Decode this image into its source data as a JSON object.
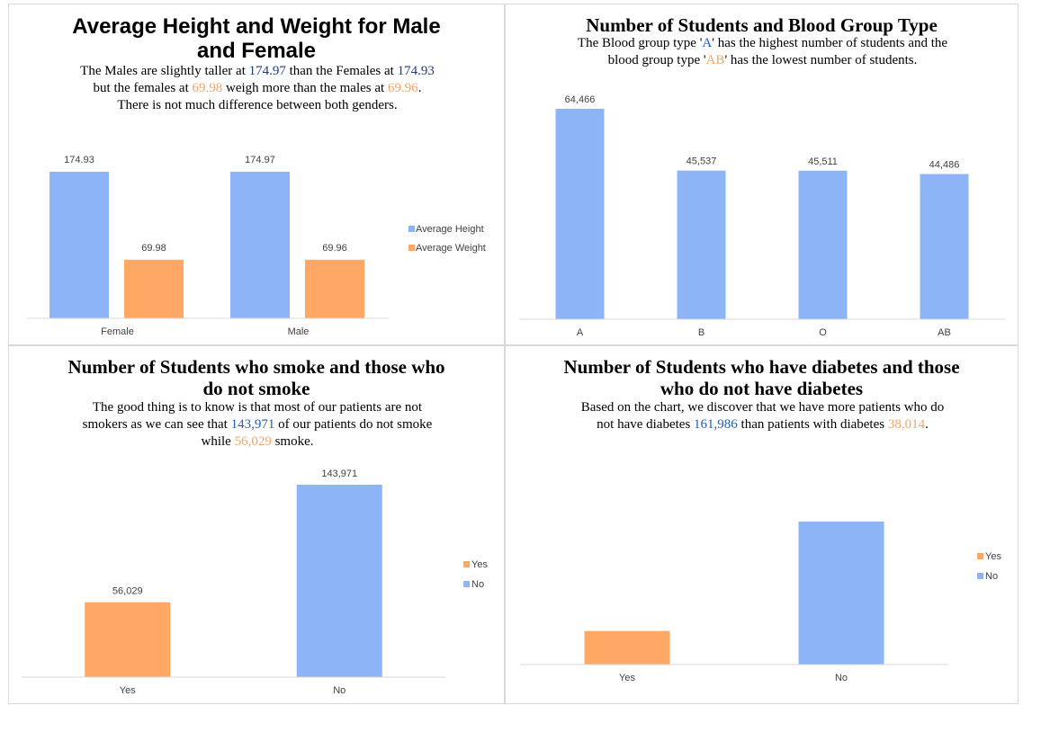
{
  "colors": {
    "height_blue": "#8eb4f8",
    "weight_orange": "#ffa764",
    "axis": "#d9d9d9",
    "label": "#404040"
  },
  "panels": {
    "p1": {
      "title_l1": "Average Height and Weight for Male",
      "title_l2": "and Female",
      "sub": {
        "a": "The Males are slightly taller at ",
        "b": "174.97",
        "c": " than the Females at ",
        "d": "174.93",
        "e": "but the females at ",
        "f": "69.98",
        "g": " weigh more than the males at ",
        "h": "69.96",
        "i": ".",
        "j": "There is not much difference between both genders."
      }
    },
    "p2": {
      "title": "Number of Students and Blood Group Type",
      "sub": {
        "a": "The Blood group type '",
        "b": "A",
        "c": "' has the highest number of students and the",
        "d": "blood group type '",
        "e": "AB",
        "f": "' has the lowest number of students."
      }
    },
    "p3": {
      "title_l1": "Number of Students who smoke and those who",
      "title_l2": "do not smoke",
      "sub": {
        "a": "The good thing is to know is that most of our patients are not",
        "b": "smokers as we can see that ",
        "c": "143,971",
        "d": " of our patients do not smoke",
        "e": "while ",
        "f": "56,029",
        "g": " smoke."
      }
    },
    "p4": {
      "title_l1": "Number of Students who have diabetes and those",
      "title_l2": "who do not have diabetes",
      "sub": {
        "a": "Based on the chart, we discover that we have more patients who do",
        "b": "not have diabetes ",
        "c": "161,986",
        "d": " than patients with diabetes ",
        "e": "38,014",
        "f": "."
      }
    }
  },
  "chart_data": [
    {
      "type": "bar",
      "categories": [
        "Female",
        "Male"
      ],
      "series": [
        {
          "name": "Average Height",
          "values": [
            174.93,
            174.97
          ],
          "labels": [
            "174.93",
            "174.97"
          ],
          "color": "#8eb4f8"
        },
        {
          "name": "Average Weight",
          "values": [
            69.98,
            69.96
          ],
          "labels": [
            "69.98",
            "69.96"
          ],
          "color": "#ffa764"
        }
      ],
      "ylim": [
        0,
        200
      ],
      "legend": "right",
      "grid": false
    },
    {
      "type": "bar",
      "categories": [
        "A",
        "B",
        "O",
        "AB"
      ],
      "series": [
        {
          "name": "",
          "values": [
            64466,
            45537,
            45511,
            44486
          ],
          "labels": [
            "64,466",
            "45,537",
            "45,511",
            "44,486"
          ],
          "color": "#8eb4f8"
        }
      ],
      "ylim": [
        0,
        74000
      ],
      "legend": "none",
      "grid": false
    },
    {
      "type": "bar",
      "categories": [
        "Yes",
        "No"
      ],
      "values": [
        56029,
        143971
      ],
      "labels": [
        "56,029",
        "143,971"
      ],
      "colors": [
        "#ffa764",
        "#8eb4f8"
      ],
      "legend_entries": [
        "Yes",
        "No"
      ],
      "ylim": [
        0,
        160000
      ],
      "legend": "right",
      "grid": false
    },
    {
      "type": "bar",
      "categories": [
        "Yes",
        "No"
      ],
      "values": [
        38014,
        161986
      ],
      "labels": [
        "",
        ""
      ],
      "colors": [
        "#ffa764",
        "#8eb4f8"
      ],
      "legend_entries": [
        "Yes",
        "No"
      ],
      "ylim": [
        0,
        180000
      ],
      "legend": "right",
      "grid": false
    }
  ]
}
